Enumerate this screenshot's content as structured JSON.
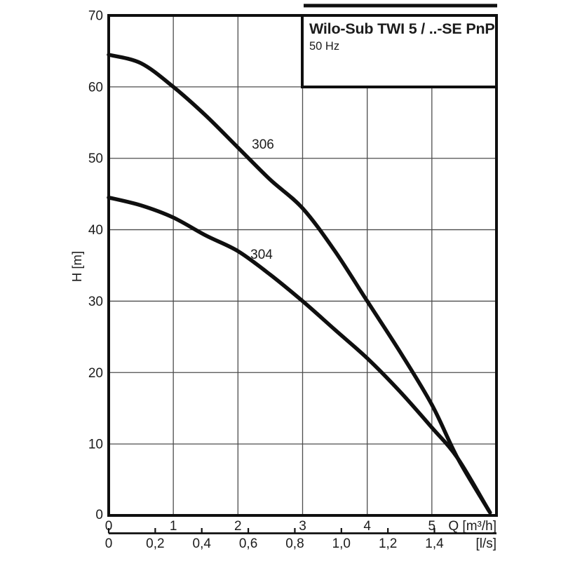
{
  "title_box": {
    "title": "Wilo-Sub TWI 5 / ..-SE PnP",
    "subtitle": "50 Hz"
  },
  "chart_data": {
    "type": "line",
    "title": "Wilo-Sub TWI 5 / ..-SE PnP",
    "subtitle": "50 Hz",
    "xlabel": "Q [m³/h]",
    "xlabel_secondary": "[l/s]",
    "ylabel": "H [m]",
    "xlim": [
      0,
      6
    ],
    "ylim": [
      0,
      70
    ],
    "grid": true,
    "legend_position": "inline-curve-labels",
    "x_primary": {
      "unit": "Q [m³/h]",
      "values": [
        0,
        1,
        2,
        3,
        4,
        5
      ],
      "labels": [
        "0",
        "1",
        "2",
        "3",
        "4",
        "5"
      ]
    },
    "x_secondary": {
      "unit": "[l/s]",
      "values_ls": [
        0,
        0.2,
        0.4,
        0.6,
        0.8,
        1.0,
        1.2,
        1.4
      ],
      "labels": [
        "0",
        "0,2",
        "0,4",
        "0,6",
        "0,8",
        "1,0",
        "1,2",
        "1,4"
      ],
      "m3h_per_ls": 3.6
    },
    "y_axis": {
      "values": [
        0,
        10,
        20,
        30,
        40,
        50,
        60,
        70
      ],
      "labels": [
        "0",
        "10",
        "20",
        "30",
        "40",
        "50",
        "60",
        "70"
      ]
    },
    "series": [
      {
        "name": "306",
        "label_anchor": {
          "q": 2.39,
          "h": 52.0
        },
        "points": [
          [
            0,
            64.5
          ],
          [
            0.5,
            63.3
          ],
          [
            1,
            60
          ],
          [
            1.5,
            56
          ],
          [
            2,
            51.5
          ],
          [
            2.5,
            47
          ],
          [
            3,
            43
          ],
          [
            3.5,
            37
          ],
          [
            4,
            30
          ],
          [
            4.5,
            23
          ],
          [
            5,
            15.5
          ],
          [
            5.4,
            8
          ],
          [
            5.9,
            0.4
          ]
        ]
      },
      {
        "name": "304",
        "label_anchor": {
          "q": 2.37,
          "h": 36.6
        },
        "points": [
          [
            0,
            44.5
          ],
          [
            0.5,
            43.4
          ],
          [
            1,
            41.7
          ],
          [
            1.5,
            39.2
          ],
          [
            2,
            37
          ],
          [
            2.5,
            33.7
          ],
          [
            3,
            30
          ],
          [
            3.5,
            26
          ],
          [
            4,
            22
          ],
          [
            4.5,
            17.4
          ],
          [
            5,
            12.3
          ],
          [
            5.4,
            8
          ],
          [
            5.88,
            0.7
          ]
        ]
      }
    ]
  },
  "style": {
    "background": "#ffffff",
    "curve_color": "#0f0f0f",
    "border_color": "#0f0f0f",
    "grid_color": "#4d4d4d",
    "text_color": "#1c1c1c"
  }
}
